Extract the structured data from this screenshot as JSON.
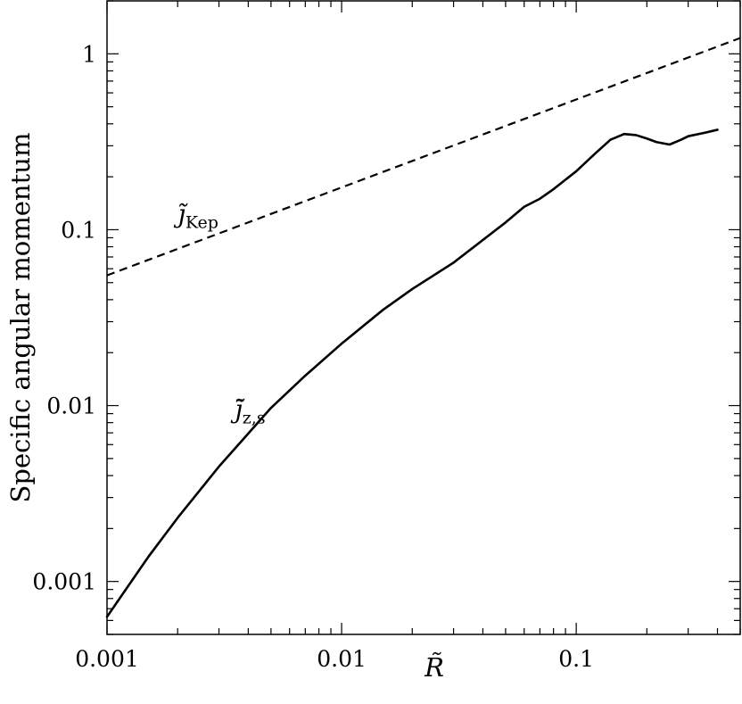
{
  "chart_data": {
    "type": "line",
    "title": "",
    "xlabel": "R̃",
    "ylabel": "Specific angular momentum",
    "x_scale": "log",
    "y_scale": "log",
    "xlim": [
      0.001,
      0.5
    ],
    "ylim": [
      0.0005,
      2.0
    ],
    "x_ticks": [
      {
        "value": 0.001,
        "label": "0.001"
      },
      {
        "value": 0.01,
        "label": "0.01"
      },
      {
        "value": 0.1,
        "label": "0.1"
      }
    ],
    "y_ticks": [
      {
        "value": 0.001,
        "label": "0.001"
      },
      {
        "value": 0.01,
        "label": "0.01"
      },
      {
        "value": 0.1,
        "label": "0.1"
      },
      {
        "value": 1,
        "label": "1"
      }
    ],
    "grid": false,
    "legend": "none",
    "series": [
      {
        "name": "j̃Kep",
        "style": "dashed",
        "color": "#000000",
        "annotation": {
          "base": "j̃",
          "sub": "Kep",
          "at": [
            0.002,
            0.11
          ]
        },
        "x": [
          0.001,
          0.5
        ],
        "y": [
          0.055,
          1.23
        ]
      },
      {
        "name": "j̄̃z,s",
        "style": "solid",
        "color": "#000000",
        "annotation": {
          "base": "j̄̃",
          "sub": "z,s",
          "at": [
            0.0035,
            0.0085
          ]
        },
        "x": [
          0.001,
          0.0015,
          0.002,
          0.003,
          0.005,
          0.007,
          0.01,
          0.015,
          0.02,
          0.03,
          0.05,
          0.06,
          0.07,
          0.08,
          0.1,
          0.12,
          0.14,
          0.16,
          0.18,
          0.2,
          0.22,
          0.25,
          0.28,
          0.3,
          0.35,
          0.4
        ],
        "y": [
          0.00063,
          0.00138,
          0.0023,
          0.0045,
          0.0097,
          0.0148,
          0.0225,
          0.035,
          0.046,
          0.065,
          0.11,
          0.135,
          0.15,
          0.17,
          0.215,
          0.27,
          0.325,
          0.35,
          0.345,
          0.33,
          0.315,
          0.305,
          0.325,
          0.34,
          0.355,
          0.37
        ]
      }
    ]
  }
}
